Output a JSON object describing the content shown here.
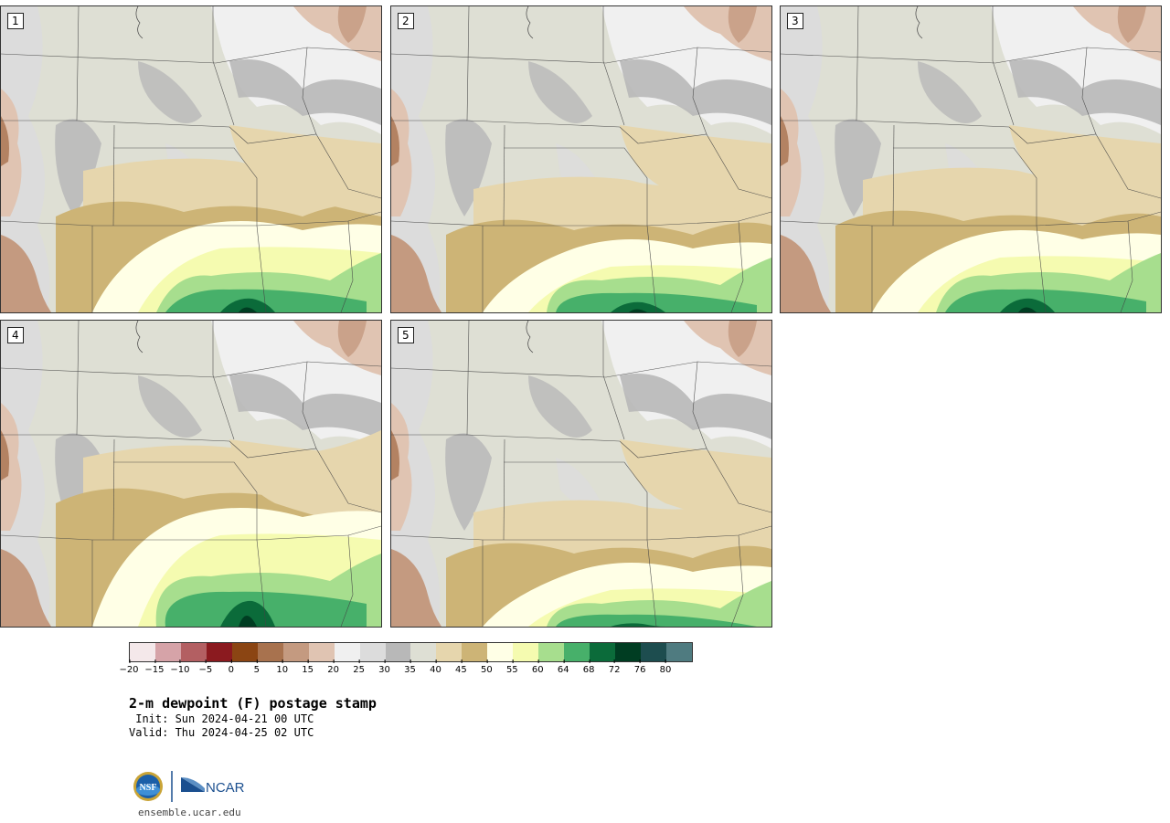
{
  "panels": [
    {
      "label": "1",
      "variant": 0
    },
    {
      "label": "2",
      "variant": 1
    },
    {
      "label": "3",
      "variant": 2
    },
    {
      "label": "4",
      "variant": 3
    },
    {
      "label": "5",
      "variant": 4
    }
  ],
  "colorbar": {
    "colors": [
      "#f4e8ea",
      "#d6a3a8",
      "#b35f62",
      "#8b1a1f",
      "#8b4513",
      "#a8724e",
      "#c49a80",
      "#e0c4b2",
      "#f0f0f0",
      "#dcdcdc",
      "#b8b8b8",
      "#dedfd4",
      "#e6d6ad",
      "#cdb476",
      "#ffffe6",
      "#f5fbb0",
      "#a7de8e",
      "#47b06a",
      "#0b6b3a",
      "#003d22",
      "#1d4d4f",
      "#4f7b80"
    ],
    "tick_labels": [
      "−20",
      "−15",
      "−10",
      "−5",
      "0",
      "5",
      "10",
      "15",
      "20",
      "25",
      "30",
      "35",
      "40",
      "45",
      "50",
      "55",
      "60",
      "64",
      "68",
      "72",
      "76",
      "80"
    ]
  },
  "title": "2-m dewpoint (F) postage stamp",
  "init_text": " Init: Sun 2024-04-21 00 UTC",
  "valid_text": "Valid: Thu 2024-04-25 02 UTC",
  "logos": {
    "nsf": "NSF",
    "ncar": "NCAR"
  },
  "site": "ensemble.ucar.edu"
}
